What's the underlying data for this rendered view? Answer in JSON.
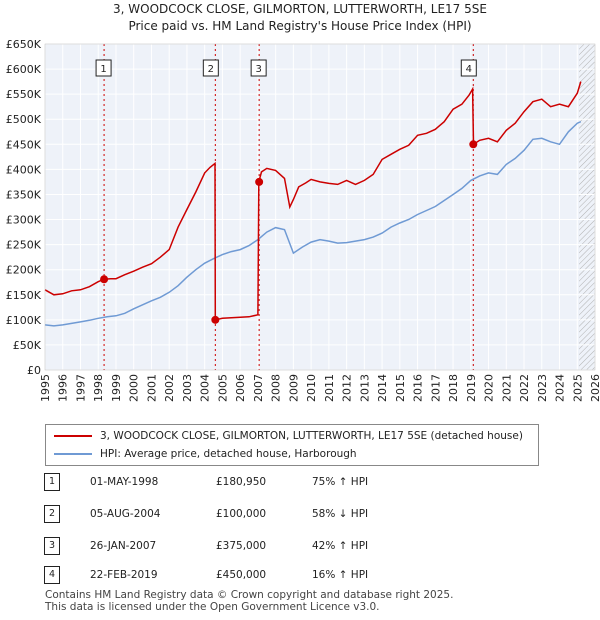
{
  "title_line1": "3, WOODCOCK CLOSE, GILMORTON, LUTTERWORTH, LE17 5SE",
  "title_line2": "Price paid vs. HM Land Registry's House Price Index (HPI)",
  "chart_data": {
    "type": "line",
    "xlim": [
      1995,
      2026
    ],
    "ylim": [
      0,
      650000
    ],
    "x_ticks": [
      "1995",
      "1996",
      "1997",
      "1998",
      "1999",
      "2000",
      "2001",
      "2002",
      "2003",
      "2004",
      "2005",
      "2006",
      "2007",
      "2008",
      "2009",
      "2010",
      "2011",
      "2012",
      "2013",
      "2014",
      "2015",
      "2016",
      "2017",
      "2018",
      "2019",
      "2020",
      "2021",
      "2022",
      "2023",
      "2024",
      "2025",
      "2026"
    ],
    "y_ticks": [
      {
        "v": 0,
        "label": "£0"
      },
      {
        "v": 50000,
        "label": "£50K"
      },
      {
        "v": 100000,
        "label": "£100K"
      },
      {
        "v": 150000,
        "label": "£150K"
      },
      {
        "v": 200000,
        "label": "£200K"
      },
      {
        "v": 250000,
        "label": "£250K"
      },
      {
        "v": 300000,
        "label": "£300K"
      },
      {
        "v": 350000,
        "label": "£350K"
      },
      {
        "v": 400000,
        "label": "£400K"
      },
      {
        "v": 450000,
        "label": "£450K"
      },
      {
        "v": 500000,
        "label": "£500K"
      },
      {
        "v": 550000,
        "label": "£550K"
      },
      {
        "v": 600000,
        "label": "£600K"
      },
      {
        "v": 650000,
        "label": "£650K"
      }
    ],
    "forecast_start": 2025.1,
    "series": [
      {
        "name": "3, WOODCOCK CLOSE, GILMORTON, LUTTERWORTH, LE17 5SE (detached house)",
        "color": "#cc0000",
        "x": [
          1995.0,
          1995.5,
          1996.0,
          1996.5,
          1997.0,
          1997.5,
          1998.0,
          1998.33,
          1998.7,
          1999.0,
          1999.5,
          2000.0,
          2000.5,
          2001.0,
          2001.5,
          2002.0,
          2002.5,
          2003.0,
          2003.5,
          2004.0,
          2004.3,
          2004.58,
          2004.6,
          2005.0,
          2005.5,
          2006.0,
          2006.5,
          2007.0,
          2007.05,
          2007.2,
          2007.5,
          2008.0,
          2008.5,
          2008.8,
          2009.0,
          2009.3,
          2009.7,
          2010.0,
          2010.5,
          2011.0,
          2011.5,
          2012.0,
          2012.5,
          2013.0,
          2013.5,
          2014.0,
          2014.5,
          2015.0,
          2015.5,
          2016.0,
          2016.5,
          2017.0,
          2017.5,
          2018.0,
          2018.5,
          2018.9,
          2019.1,
          2019.15,
          2019.5,
          2020.0,
          2020.5,
          2021.0,
          2021.5,
          2022.0,
          2022.5,
          2023.0,
          2023.5,
          2024.0,
          2024.5,
          2025.0,
          2025.2
        ],
        "y": [
          160000,
          150000,
          152000,
          158000,
          160000,
          166000,
          176000,
          180950,
          182000,
          182000,
          190000,
          197000,
          205000,
          212000,
          225000,
          240000,
          285000,
          320000,
          355000,
          393000,
          404000,
          412000,
          100000,
          103000,
          104000,
          105000,
          106000,
          110000,
          375000,
          395000,
          402000,
          398000,
          382000,
          325000,
          340000,
          365000,
          373000,
          380000,
          375000,
          372000,
          370000,
          378000,
          370000,
          378000,
          390000,
          420000,
          430000,
          440000,
          448000,
          468000,
          472000,
          480000,
          495000,
          520000,
          530000,
          548000,
          560000,
          450000,
          458000,
          462000,
          455000,
          478000,
          492000,
          515000,
          535000,
          540000,
          525000,
          530000,
          525000,
          552000,
          575000
        ]
      },
      {
        "name": "HPI: Average price, detached house, Harborough",
        "color": "#6f9ad4",
        "x": [
          1995.0,
          1995.5,
          1996.0,
          1996.5,
          1997.0,
          1997.5,
          1998.0,
          1998.5,
          1999.0,
          1999.5,
          2000.0,
          2000.5,
          2001.0,
          2001.5,
          2002.0,
          2002.5,
          2003.0,
          2003.5,
          2004.0,
          2004.5,
          2005.0,
          2005.5,
          2006.0,
          2006.5,
          2007.0,
          2007.5,
          2008.0,
          2008.5,
          2009.0,
          2009.5,
          2010.0,
          2010.5,
          2011.0,
          2011.5,
          2012.0,
          2012.5,
          2013.0,
          2013.5,
          2014.0,
          2014.5,
          2015.0,
          2015.5,
          2016.0,
          2016.5,
          2017.0,
          2017.5,
          2018.0,
          2018.5,
          2019.0,
          2019.5,
          2020.0,
          2020.5,
          2021.0,
          2021.5,
          2022.0,
          2022.5,
          2023.0,
          2023.5,
          2024.0,
          2024.5,
          2025.0,
          2025.2
        ],
        "y": [
          90000,
          88000,
          90000,
          93000,
          96000,
          99000,
          103000,
          106000,
          108000,
          113000,
          122000,
          130000,
          138000,
          145000,
          155000,
          168000,
          185000,
          200000,
          213000,
          222000,
          230000,
          236000,
          240000,
          248000,
          260000,
          275000,
          284000,
          280000,
          233000,
          245000,
          255000,
          260000,
          257000,
          253000,
          254000,
          257000,
          260000,
          265000,
          273000,
          285000,
          293000,
          300000,
          310000,
          318000,
          326000,
          338000,
          350000,
          362000,
          378000,
          387000,
          393000,
          390000,
          410000,
          422000,
          438000,
          460000,
          462000,
          455000,
          450000,
          475000,
          492000,
          495000
        ]
      }
    ],
    "sales": [
      {
        "n": "1",
        "x": 1998.33,
        "y": 180950
      },
      {
        "n": "2",
        "x": 2004.6,
        "y": 100000
      },
      {
        "n": "3",
        "x": 2007.07,
        "y": 375000
      },
      {
        "n": "4",
        "x": 2019.14,
        "y": 450000
      }
    ]
  },
  "legend": {
    "red_label": "3, WOODCOCK CLOSE, GILMORTON, LUTTERWORTH, LE17 5SE (detached house)",
    "blue_label": "HPI: Average price, detached house, Harborough"
  },
  "transactions": [
    {
      "n": "1",
      "date": "01-MAY-1998",
      "price": "£180,950",
      "hpi": "75% ↑ HPI"
    },
    {
      "n": "2",
      "date": "05-AUG-2004",
      "price": "£100,000",
      "hpi": "58% ↓ HPI"
    },
    {
      "n": "3",
      "date": "26-JAN-2007",
      "price": "£375,000",
      "hpi": "42% ↑ HPI"
    },
    {
      "n": "4",
      "date": "22-FEB-2019",
      "price": "£450,000",
      "hpi": "16% ↑ HPI"
    }
  ],
  "footer_line1": "Contains HM Land Registry data © Crown copyright and database right 2025.",
  "footer_line2": "This data is licensed under the Open Government Licence v3.0."
}
